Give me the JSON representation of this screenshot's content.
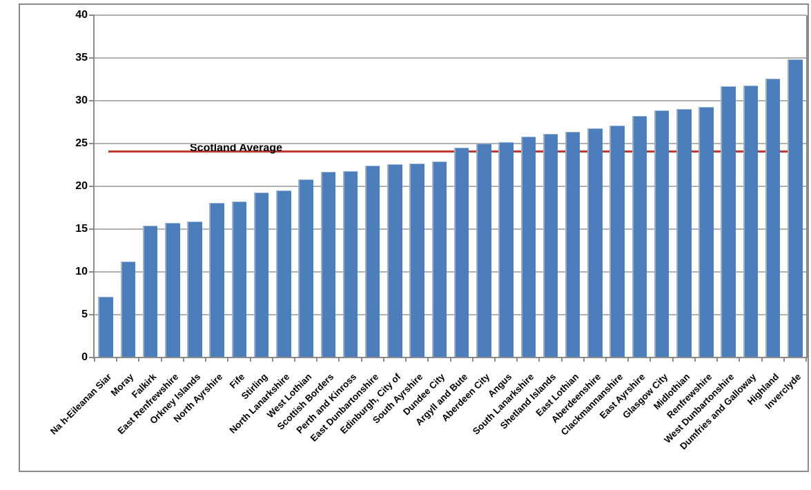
{
  "chart_data": {
    "type": "bar",
    "title": "",
    "xlabel": "",
    "ylabel": "",
    "categories": [
      "Na h-Eileanan Siar",
      "Moray",
      "Falkirk",
      "East Renfrewshire",
      "Orkney Islands",
      "North Ayrshire",
      "Fife",
      "Stirling",
      "North Lanarkshire",
      "West Lothian",
      "Scottish Borders",
      "Perth and Kinross",
      "East Dunbartonshire",
      "Edinburgh, City of",
      "South Ayrshire",
      "Dundee City",
      "Argyll and Bute",
      "Aberdeen City",
      "Angus",
      "South Lanarkshire",
      "Shetland Islands",
      "East Lothian",
      "Aberdeenshire",
      "Clackmannanshire",
      "East Ayrshire",
      "Glasgow City",
      "Midlothian",
      "Renfrewshire",
      "West Dunbartonshire",
      "Dumfries and Galloway",
      "Highland",
      "Inverclyde"
    ],
    "values": [
      7.1,
      11.2,
      15.4,
      15.7,
      15.9,
      18.1,
      18.2,
      19.3,
      19.5,
      20.8,
      21.7,
      21.8,
      22.4,
      22.6,
      22.7,
      22.9,
      24.5,
      25.0,
      25.2,
      25.8,
      26.1,
      26.4,
      26.8,
      27.1,
      28.2,
      28.9,
      29.0,
      29.3,
      31.7,
      31.8,
      32.6,
      34.8
    ],
    "ylim": [
      0,
      40
    ],
    "yticks": [
      0,
      5,
      10,
      15,
      20,
      25,
      30,
      35,
      40
    ],
    "grid": true,
    "legend_position": "none",
    "average_line": {
      "label": "Scotland Average",
      "value": 24.1,
      "color": "#bf3a2f"
    },
    "colors": {
      "bar_fill": "#4d7ebc",
      "bar_border": "#95b3d7",
      "gridline": "#b0b0b0",
      "axis": "#8a8a8a",
      "frame": "#8a8a8a",
      "text": "#000000",
      "background": "#ffffff"
    }
  }
}
